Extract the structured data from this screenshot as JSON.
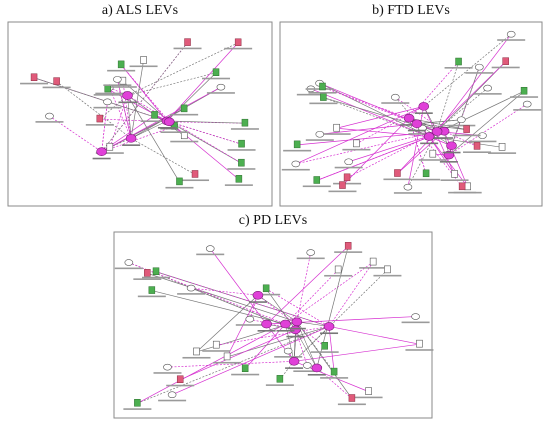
{
  "panels": [
    {
      "title": "a) ALS LEVs"
    },
    {
      "title": "b) FTD LEVs"
    },
    {
      "title": "c) PD LEVs"
    }
  ]
}
